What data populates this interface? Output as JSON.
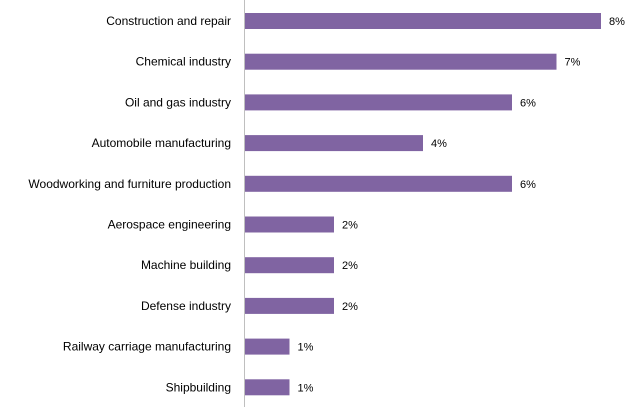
{
  "chart_data": {
    "type": "bar",
    "orientation": "horizontal",
    "categories": [
      "Construction and repair",
      "Chemical industry",
      "Oil and gas industry",
      "Automobile manufacturing",
      "Woodworking and furniture production",
      "Aerospace engineering",
      "Machine building",
      "Defense industry",
      "Railway carriage manufacturing",
      "Shipbuilding"
    ],
    "values": [
      8,
      7,
      6,
      4,
      6,
      2,
      2,
      2,
      1,
      1
    ],
    "value_labels": [
      "8%",
      "7%",
      "6%",
      "4%",
      "6%",
      "2%",
      "2%",
      "2%",
      "1%",
      "1%"
    ],
    "title": "",
    "xlabel": "",
    "ylabel": "",
    "xlim": [
      0,
      8
    ],
    "grid": false,
    "legend": "none",
    "bar_color": "#8064A2"
  }
}
